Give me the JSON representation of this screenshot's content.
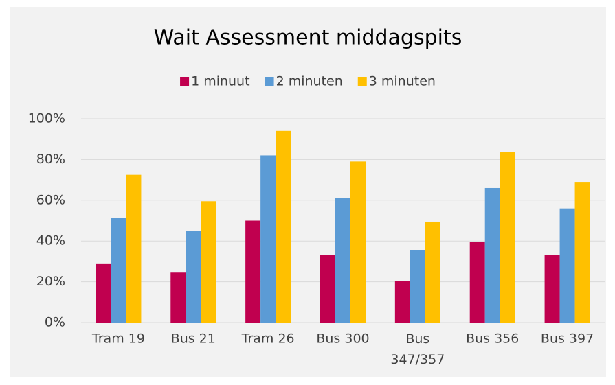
{
  "chart_data": {
    "type": "bar",
    "title": "Wait Assessment middagspits",
    "categories": [
      "Tram 19",
      "Bus 21",
      "Tram 26",
      "Bus 300",
      "Bus 347/357",
      "Bus 356",
      "Bus 397"
    ],
    "series": [
      {
        "name": "1 minuut",
        "color": "#c0004f",
        "values": [
          29,
          24.5,
          50,
          33,
          20.5,
          39.5,
          33
        ]
      },
      {
        "name": "2 minuten",
        "color": "#5b9bd5",
        "values": [
          51.5,
          45,
          82,
          61,
          35.5,
          66,
          56
        ]
      },
      {
        "name": "3 minuten",
        "color": "#ffc000",
        "values": [
          72.5,
          59.5,
          94,
          79,
          49.5,
          83.5,
          69
        ]
      }
    ],
    "ylim": [
      0,
      100
    ],
    "yticks": [
      {
        "value": 0,
        "label": "0%"
      },
      {
        "value": 20,
        "label": "20%"
      },
      {
        "value": 40,
        "label": "40%"
      },
      {
        "value": 60,
        "label": "60%"
      },
      {
        "value": 80,
        "label": "80%"
      },
      {
        "value": 100,
        "label": "100%"
      }
    ],
    "grid": true,
    "legend": "top"
  }
}
